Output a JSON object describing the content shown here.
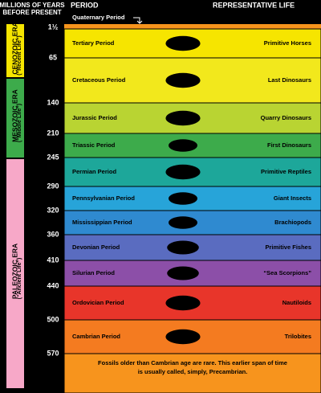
{
  "header": {
    "years": [
      "MILLIONS OF YEARS",
      "BEFORE PRESENT"
    ],
    "period": "PERIOD",
    "life": "REPRESENTATIVE LIFE"
  },
  "eras": [
    {
      "name": "CENOZOIC ERA",
      "note": "(“Recent Life”)"
    },
    {
      "name": "MESOZOIC ERA",
      "note": "(“Middle Life”)"
    },
    {
      "name": "PALEOZOIC ERA",
      "note": "(“Ancient Life”)"
    }
  ],
  "quaternary": "Quaternary Period",
  "years": [
    "1½",
    "65",
    "140",
    "210",
    "245",
    "290",
    "320",
    "360",
    "410",
    "440",
    "500",
    "570"
  ],
  "periods": [
    {
      "name": "Tertiary Period",
      "life": "Primitive Horses"
    },
    {
      "name": "Cretaceous Period",
      "life": "Last Dinosaurs"
    },
    {
      "name": "Jurassic Period",
      "life": "Quarry Dinosaurs"
    },
    {
      "name": "Triassic Period",
      "life": "First Dinosaurs"
    },
    {
      "name": "Permian Period",
      "life": "Primitive Reptiles"
    },
    {
      "name": "Pennsylvanian Period",
      "life": "Giant Insects"
    },
    {
      "name": "Mississippian Period",
      "life": "Brachiopods"
    },
    {
      "name": "Devonian Period",
      "life": "Primitive Fishes"
    },
    {
      "name": "Silurian Period",
      "life": "“Sea Scorpions”"
    },
    {
      "name": "Ordovician Period",
      "life": "Nautiloids"
    },
    {
      "name": "Cambrian Period",
      "life": "Trilobites"
    }
  ],
  "precambrian": [
    "Fossils older than Cambrian age are rare. This earlier span of time",
    "is usually called, simply, Precambrian."
  ]
}
